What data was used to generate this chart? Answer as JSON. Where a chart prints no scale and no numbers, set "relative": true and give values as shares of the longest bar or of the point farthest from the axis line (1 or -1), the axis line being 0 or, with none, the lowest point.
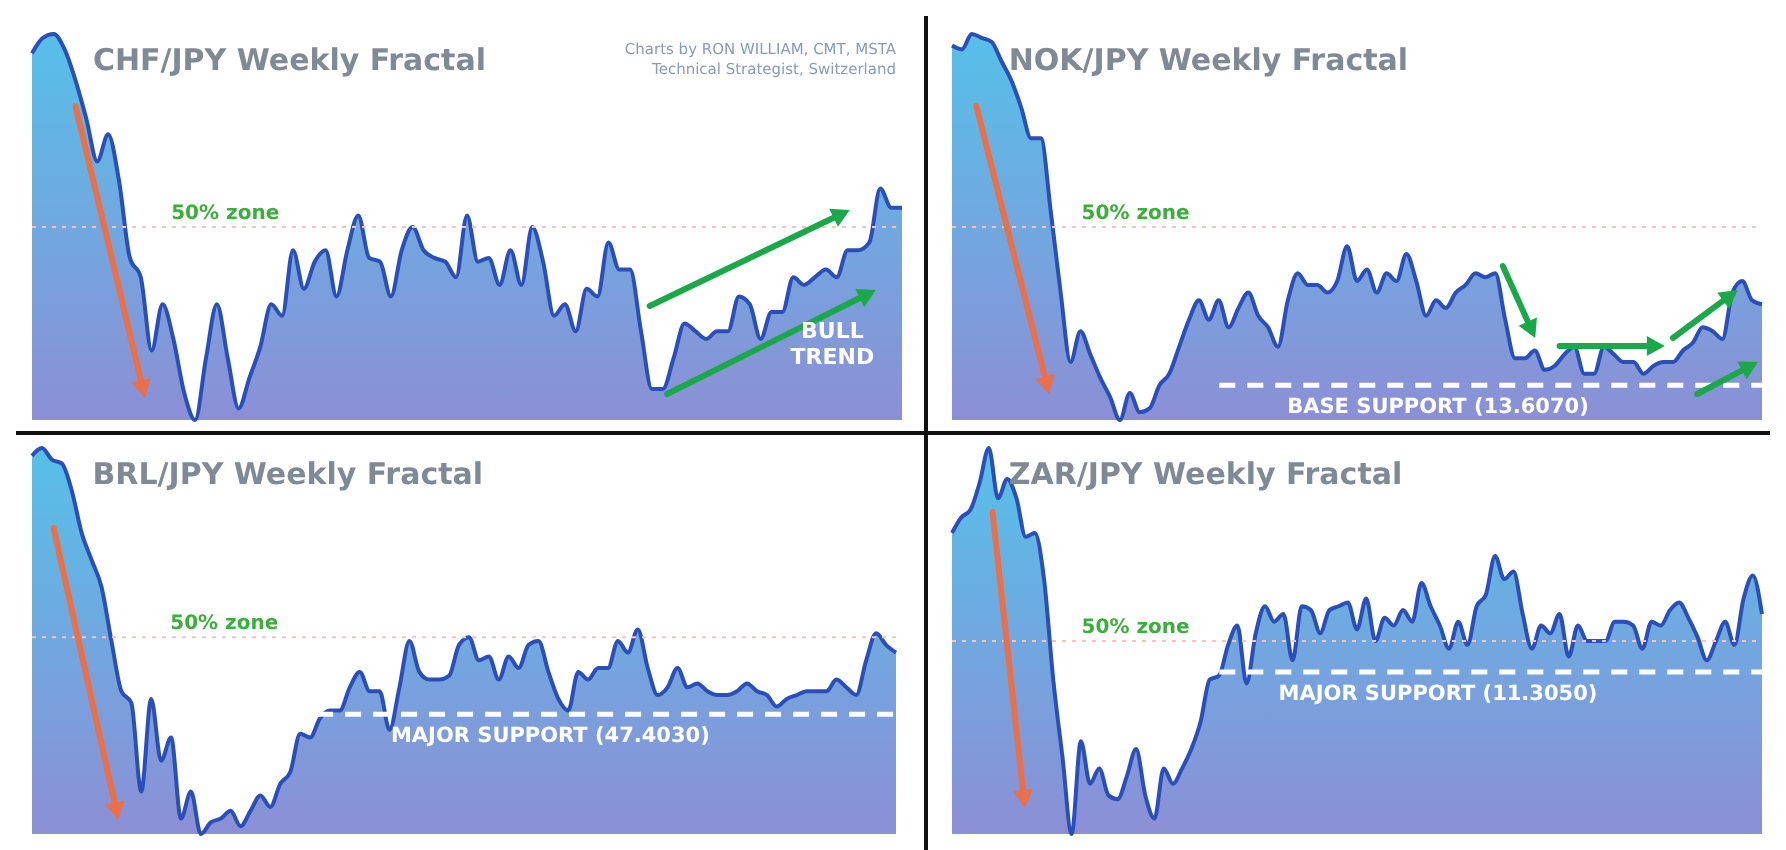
{
  "chart_data": [
    {
      "type": "area",
      "relative": true,
      "title": "CHF/JPY Weekly Fractal",
      "categories": [
        null,
        null,
        null,
        null,
        null,
        null,
        null,
        null,
        null,
        null,
        null,
        null,
        null,
        null,
        null,
        null,
        null,
        null,
        null,
        null,
        null,
        null,
        null,
        null,
        null,
        null,
        null,
        null,
        null,
        null,
        null,
        null,
        null,
        null,
        null,
        null,
        null,
        null,
        null,
        null,
        null,
        null,
        null,
        null,
        null,
        null,
        null,
        null,
        null,
        null,
        null,
        null,
        null,
        null,
        null,
        null,
        null,
        null,
        null,
        null,
        null,
        null,
        null,
        null,
        null,
        null,
        null,
        null,
        null,
        null,
        null,
        null,
        null,
        null,
        null,
        null,
        null,
        null,
        null,
        null,
        null
      ],
      "series": [
        {
          "color": "#2a4fb8",
          "values": [
            0.95,
            0.99,
            1.0,
            0.96,
            0.88,
            0.78,
            0.67,
            0.74,
            0.62,
            0.42,
            0.37,
            0.18,
            0.3,
            0.21,
            0.07,
            0.0,
            0.16,
            0.3,
            0.16,
            0.03,
            0.11,
            0.19,
            0.3,
            0.27,
            0.44,
            0.34,
            0.41,
            0.44,
            0.32,
            0.44,
            0.53,
            0.42,
            0.41,
            0.32,
            0.44,
            0.5,
            0.44,
            0.42,
            0.41,
            0.37,
            0.53,
            0.41,
            0.42,
            0.35,
            0.44,
            0.35,
            0.5,
            0.41,
            0.27,
            0.3,
            0.23,
            0.34,
            0.32,
            0.46,
            0.39,
            0.39,
            0.23,
            0.08,
            0.08,
            0.16,
            0.25,
            0.23,
            0.21,
            0.23,
            0.23,
            0.32,
            0.3,
            0.21,
            0.28,
            0.28,
            0.37,
            0.35,
            0.37,
            0.39,
            0.37,
            0.44,
            0.44,
            0.46,
            0.6,
            0.55,
            0.55
          ]
        }
      ],
      "ref_lines": [
        {
          "axis": "y",
          "value": 0.5,
          "label": "50% zone",
          "color": "#f2c4c4",
          "line_style": "dotted"
        }
      ],
      "annotations": [
        "Charts by RON WILLIAM, CMT, MSTA",
        "Technical Strategist, Switzerland",
        "BULL TREND"
      ]
    },
    {
      "type": "area",
      "relative": true,
      "title": "NOK/JPY Weekly Fractal",
      "categories": [
        null,
        null,
        null,
        null,
        null,
        null,
        null,
        null,
        null,
        null,
        null,
        null,
        null,
        null,
        null,
        null,
        null,
        null,
        null,
        null,
        null,
        null,
        null,
        null,
        null,
        null,
        null,
        null,
        null,
        null,
        null,
        null,
        null,
        null,
        null,
        null,
        null,
        null,
        null,
        null,
        null,
        null,
        null,
        null,
        null,
        null,
        null,
        null,
        null,
        null,
        null,
        null,
        null,
        null,
        null,
        null,
        null,
        null,
        null,
        null,
        null,
        null,
        null,
        null,
        null,
        null,
        null,
        null,
        null,
        null,
        null,
        null,
        null,
        null,
        null,
        null,
        null,
        null,
        null,
        null,
        null,
        null,
        null
      ],
      "series": [
        {
          "color": "#2a4fb8",
          "values": [
            0.97,
            0.96,
            1.0,
            0.99,
            0.98,
            0.93,
            0.88,
            0.81,
            0.73,
            0.73,
            0.54,
            0.33,
            0.15,
            0.23,
            0.17,
            0.11,
            0.06,
            0.0,
            0.07,
            0.02,
            0.03,
            0.09,
            0.12,
            0.19,
            0.26,
            0.31,
            0.26,
            0.31,
            0.24,
            0.29,
            0.33,
            0.27,
            0.24,
            0.19,
            0.31,
            0.38,
            0.35,
            0.35,
            0.33,
            0.36,
            0.45,
            0.36,
            0.39,
            0.33,
            0.38,
            0.36,
            0.43,
            0.36,
            0.27,
            0.31,
            0.29,
            0.33,
            0.35,
            0.38,
            0.37,
            0.38,
            0.26,
            0.16,
            0.16,
            0.18,
            0.13,
            0.14,
            0.17,
            0.19,
            0.12,
            0.12,
            0.19,
            0.17,
            0.15,
            0.15,
            0.12,
            0.14,
            0.15,
            0.15,
            0.18,
            0.2,
            0.24,
            0.23,
            0.21,
            0.33,
            0.36,
            0.31,
            0.3
          ]
        }
      ],
      "ref_lines": [
        {
          "axis": "y",
          "value": 0.5,
          "label": "50% zone",
          "color": "#f2c4c4",
          "line_style": "dotted"
        },
        {
          "axis": "y",
          "value": 0.09,
          "label": "BASE SUPPORT (13.6070)",
          "color": "#ffffff",
          "line_style": "dashed"
        }
      ]
    },
    {
      "type": "area",
      "relative": true,
      "title": "BRL/JPY Weekly Fractal",
      "categories": [
        null,
        null,
        null,
        null,
        null,
        null,
        null,
        null,
        null,
        null,
        null,
        null,
        null,
        null,
        null,
        null,
        null,
        null,
        null,
        null,
        null,
        null,
        null,
        null,
        null,
        null,
        null,
        null,
        null,
        null,
        null,
        null,
        null,
        null,
        null,
        null,
        null,
        null,
        null,
        null,
        null,
        null,
        null,
        null,
        null,
        null,
        null,
        null,
        null,
        null,
        null,
        null,
        null,
        null,
        null,
        null,
        null,
        null,
        null,
        null,
        null,
        null,
        null,
        null,
        null,
        null,
        null,
        null,
        null,
        null,
        null,
        null,
        null,
        null,
        null,
        null,
        null,
        null,
        null,
        null,
        null,
        null,
        null,
        null,
        null,
        null,
        null,
        null
      ],
      "series": [
        {
          "color": "#2a4fb8",
          "values": [
            0.98,
            1.0,
            0.97,
            0.96,
            0.89,
            0.78,
            0.71,
            0.64,
            0.5,
            0.37,
            0.34,
            0.11,
            0.35,
            0.19,
            0.25,
            0.04,
            0.11,
            0.0,
            0.03,
            0.04,
            0.06,
            0.02,
            0.06,
            0.1,
            0.07,
            0.13,
            0.16,
            0.26,
            0.25,
            0.3,
            0.32,
            0.32,
            0.38,
            0.42,
            0.37,
            0.37,
            0.27,
            0.38,
            0.5,
            0.42,
            0.4,
            0.4,
            0.41,
            0.49,
            0.51,
            0.45,
            0.46,
            0.4,
            0.46,
            0.43,
            0.49,
            0.5,
            0.42,
            0.35,
            0.32,
            0.42,
            0.4,
            0.43,
            0.43,
            0.5,
            0.47,
            0.53,
            0.43,
            0.36,
            0.38,
            0.43,
            0.38,
            0.39,
            0.37,
            0.36,
            0.36,
            0.37,
            0.39,
            0.37,
            0.36,
            0.33,
            0.35,
            0.36,
            0.37,
            0.37,
            0.37,
            0.4,
            0.38,
            0.36,
            0.45,
            0.52,
            0.49,
            0.47
          ]
        }
      ],
      "ref_lines": [
        {
          "axis": "y",
          "value": 0.51,
          "label": "50% zone",
          "color": "#f2c4c4",
          "line_style": "dotted"
        },
        {
          "axis": "y",
          "value": 0.31,
          "label": "MAJOR SUPPORT (47.4030)",
          "color": "#ffffff",
          "line_style": "dashed"
        }
      ]
    },
    {
      "type": "area",
      "relative": true,
      "title": "ZAR/JPY Weekly Fractal",
      "categories": [
        null,
        null,
        null,
        null,
        null,
        null,
        null,
        null,
        null,
        null,
        null,
        null,
        null,
        null,
        null,
        null,
        null,
        null,
        null,
        null,
        null,
        null,
        null,
        null,
        null,
        null,
        null,
        null,
        null,
        null,
        null,
        null,
        null,
        null,
        null,
        null,
        null,
        null,
        null,
        null,
        null,
        null,
        null,
        null,
        null,
        null,
        null,
        null,
        null,
        null,
        null,
        null,
        null,
        null,
        null,
        null,
        null,
        null,
        null,
        null,
        null,
        null,
        null,
        null,
        null,
        null,
        null,
        null,
        null,
        null,
        null,
        null,
        null,
        null,
        null,
        null,
        null,
        null,
        null,
        null,
        null,
        null,
        null,
        null,
        null,
        null,
        null,
        null,
        null
      ],
      "series": [
        {
          "color": "#2a4fb8",
          "values": [
            0.78,
            0.82,
            0.84,
            0.91,
            1.0,
            0.87,
            0.92,
            0.87,
            0.77,
            0.78,
            0.66,
            0.4,
            0.2,
            0.0,
            0.24,
            0.13,
            0.17,
            0.1,
            0.09,
            0.15,
            0.22,
            0.1,
            0.04,
            0.17,
            0.13,
            0.17,
            0.22,
            0.29,
            0.4,
            0.41,
            0.49,
            0.54,
            0.39,
            0.52,
            0.59,
            0.55,
            0.57,
            0.45,
            0.59,
            0.58,
            0.52,
            0.58,
            0.59,
            0.6,
            0.53,
            0.61,
            0.5,
            0.56,
            0.54,
            0.58,
            0.55,
            0.65,
            0.59,
            0.54,
            0.48,
            0.55,
            0.49,
            0.59,
            0.62,
            0.72,
            0.66,
            0.68,
            0.57,
            0.48,
            0.54,
            0.52,
            0.57,
            0.46,
            0.54,
            0.5,
            0.5,
            0.5,
            0.55,
            0.55,
            0.54,
            0.48,
            0.55,
            0.54,
            0.58,
            0.6,
            0.56,
            0.51,
            0.45,
            0.5,
            0.55,
            0.49,
            0.61,
            0.67,
            0.57
          ]
        }
      ],
      "ref_lines": [
        {
          "axis": "y",
          "value": 0.5,
          "label": "50% zone",
          "color": "#f2c4c4",
          "line_style": "dotted"
        },
        {
          "axis": "y",
          "value": 0.42,
          "label": "MAJOR SUPPORT (11.3050)",
          "color": "#ffffff",
          "line_style": "dashed"
        }
      ]
    }
  ]
}
